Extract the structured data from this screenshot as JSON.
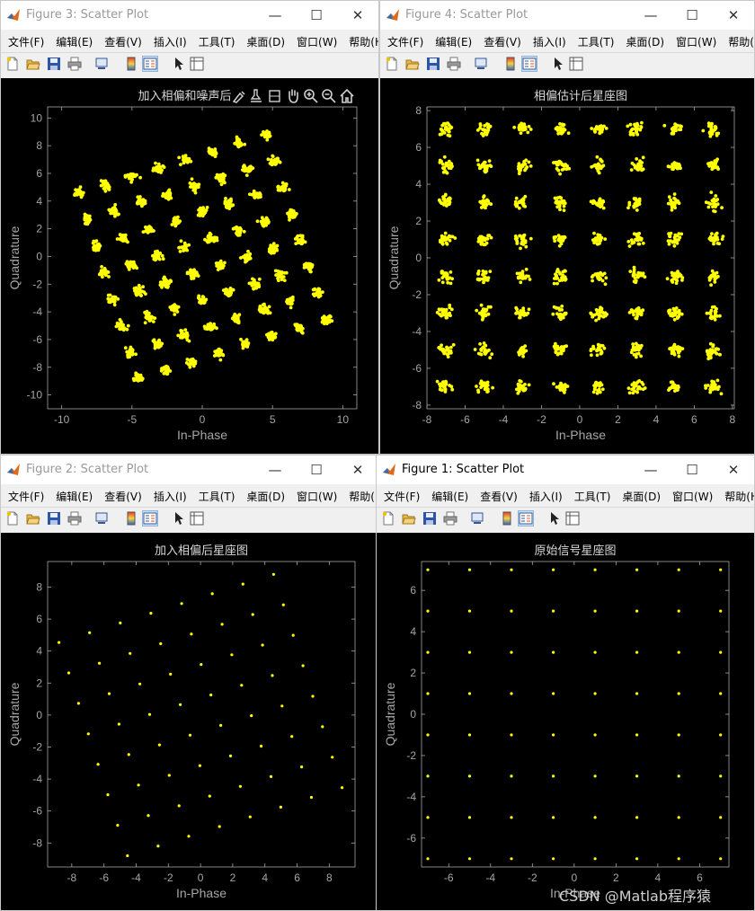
{
  "menu_items": [
    "文件(F)",
    "编辑(E)",
    "查看(V)",
    "插入(I)",
    "工具(T)",
    "桌面(D)",
    "窗口(W)",
    "帮助(H)"
  ],
  "menu_overflow": "↘",
  "window_controls": {
    "minimize": "—",
    "maximize": "☐",
    "close": "✕"
  },
  "colors": {
    "marker": "#ffff00",
    "axes_bg": "#000000",
    "axis_color": "#a6a6a6",
    "title_color": "#d9d9d9"
  },
  "windows": [
    {
      "title": "Figure 3: Scatter Plot",
      "active": false,
      "axes_toolbar": [
        "brush-icon",
        "datatip-icon",
        "rotate-icon",
        "pan-icon",
        "zoom-in-icon",
        "zoom-out-icon",
        "home-icon"
      ],
      "chart_data": {
        "type": "scatter",
        "title": "加入相偏和噪声后星座图",
        "xlabel": "In-Phase",
        "ylabel": "Quadrature",
        "xlim": [
          -11,
          11
        ],
        "ylim": [
          -11,
          10.8
        ],
        "xticks": [
          -10,
          -5,
          0,
          5,
          10
        ],
        "yticks": [
          -10,
          -8,
          -6,
          -4,
          -2,
          0,
          2,
          4,
          6,
          8,
          10
        ],
        "series": [
          {
            "constellation": "64-QAM",
            "rotation_deg": 17.7,
            "noise_sigma": 0.24,
            "samples_per_point": 28
          }
        ]
      }
    },
    {
      "title": "Figure 4: Scatter Plot",
      "active": false,
      "chart_data": {
        "type": "scatter",
        "title": "相偏估计后星座图",
        "xlabel": "In-Phase",
        "ylabel": "Quadrature",
        "xlim": [
          -8,
          8.1
        ],
        "ylim": [
          -8.2,
          8.2
        ],
        "xticks": [
          -8,
          -6,
          -4,
          -2,
          0,
          2,
          4,
          6,
          8
        ],
        "yticks": [
          -8,
          -6,
          -4,
          -2,
          0,
          2,
          4,
          6,
          8
        ],
        "series": [
          {
            "constellation": "64-QAM",
            "rotation_deg": 0,
            "noise_sigma": 0.25,
            "samples_per_point": 24
          }
        ]
      }
    },
    {
      "title": "Figure 2: Scatter Plot",
      "active": false,
      "chart_data": {
        "type": "scatter",
        "title": "加入相偏后星座图",
        "xlabel": "In-Phase",
        "ylabel": "Quadrature",
        "xlim": [
          -9.5,
          9.6
        ],
        "ylim": [
          -9.5,
          9.6
        ],
        "xticks": [
          -8,
          -6,
          -4,
          -2,
          0,
          2,
          4,
          6,
          8
        ],
        "yticks": [
          -8,
          -6,
          -4,
          -2,
          0,
          2,
          4,
          6,
          8
        ],
        "series": [
          {
            "constellation": "64-QAM",
            "rotation_deg": 17.7,
            "noise_sigma": 0,
            "samples_per_point": 1
          }
        ]
      }
    },
    {
      "title": "Figure 1: Scatter Plot",
      "active": true,
      "chart_data": {
        "type": "scatter",
        "title": "原始信号星座图",
        "xlabel": "In-Phase",
        "ylabel": "Quadrature",
        "xlim": [
          -7.3,
          7.4
        ],
        "ylim": [
          -7.4,
          7.4
        ],
        "xticks": [
          -6,
          -4,
          -2,
          0,
          2,
          4,
          6
        ],
        "yticks": [
          -6,
          -4,
          -2,
          0,
          2,
          4,
          6
        ],
        "series": [
          {
            "constellation": "64-QAM",
            "rotation_deg": 0,
            "noise_sigma": 0,
            "samples_per_point": 1
          }
        ]
      }
    }
  ],
  "watermark": "CSDN @Matlab程序猿"
}
